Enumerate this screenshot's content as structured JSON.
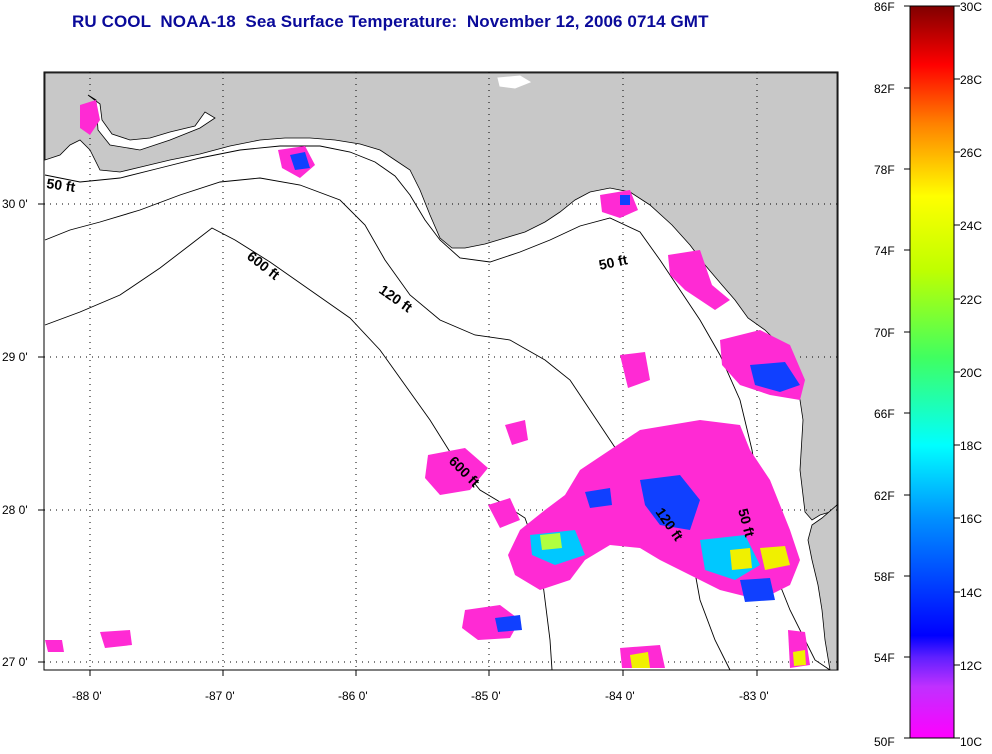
{
  "title": "RU COOL  NOAA-18  Sea Surface Temperature:  November 12, 2006 0714 GMT",
  "map": {
    "lat_labels": [
      "30 0'",
      "29 0'",
      "28 0'",
      "27 0'"
    ],
    "lon_labels": [
      "-88 0'",
      "-87 0'",
      "-86 0'",
      "-85 0'",
      "-84 0'",
      "-83 0'"
    ],
    "contour_labels": [
      "50 ft",
      "600 ft",
      "120 ft",
      "50 ft",
      "600 ft",
      "120 ft",
      "50 ft"
    ],
    "colors": {
      "land": "#c8c8c8",
      "water": "#ffffff",
      "cold_sst": "#ff2ad4",
      "mid_sst": "#1040ff",
      "warm_sst": "#f0f000"
    }
  },
  "colorbar": {
    "fahrenheit": [
      "86F",
      "82F",
      "78F",
      "74F",
      "70F",
      "66F",
      "62F",
      "58F",
      "54F",
      "50F"
    ],
    "celsius": [
      "30C",
      "28C",
      "26C",
      "24C",
      "22C",
      "20C",
      "18C",
      "16C",
      "14C",
      "12C",
      "10C"
    ]
  }
}
